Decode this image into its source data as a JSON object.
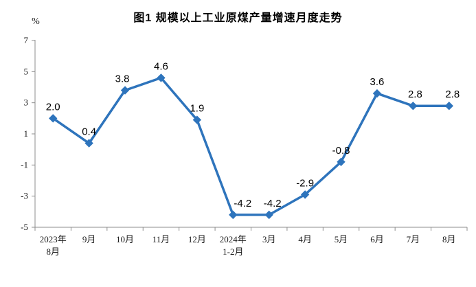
{
  "figure": {
    "title": "图1  规模以上工业原煤产量增速月度走势",
    "unit_label": "%"
  },
  "chart_data": {
    "type": "line",
    "title": "图1  规模以上工业原煤产量增速月度走势",
    "unit_label": "%",
    "categories": [
      "2023年\n8月",
      "9月",
      "10月",
      "11月",
      "12月",
      "2024年\n1-2月",
      "3月",
      "4月",
      "5月",
      "6月",
      "7月",
      "8月"
    ],
    "values": [
      2.0,
      0.4,
      3.8,
      4.6,
      1.9,
      -4.2,
      -4.2,
      -2.9,
      -0.8,
      3.6,
      2.8,
      2.8
    ],
    "data_labels": [
      "2.0",
      "0.4",
      "3.8",
      "4.6",
      "1.9",
      "-4.2",
      "-4.2",
      "-2.9",
      "-0.8",
      "3.6",
      "2.8",
      "2.8"
    ],
    "xlabel": "",
    "ylabel": "%",
    "ylim": [
      -5,
      7
    ],
    "yticks": [
      7,
      5,
      3,
      1,
      -1,
      -3,
      -5
    ],
    "grid": false,
    "legend": "none",
    "marker": "diamond",
    "line_color": "#2E74BC",
    "marker_color": "#2E74BC",
    "data_label_color": "#000000",
    "axis_color": "#8C8C8C",
    "tick_label_color": "#1A1A1A"
  }
}
